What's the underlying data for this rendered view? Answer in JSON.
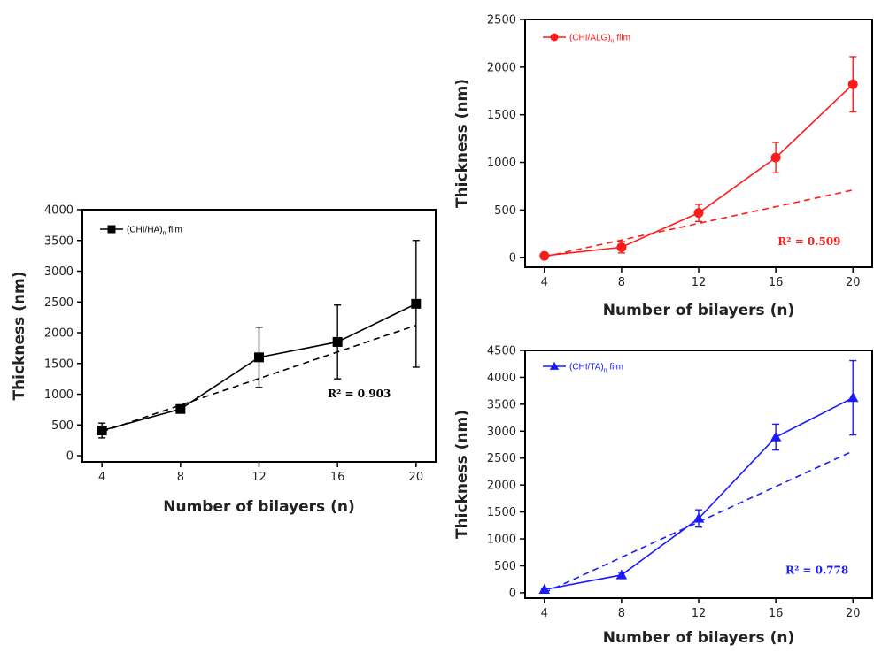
{
  "chart_data": [
    {
      "type": "line",
      "xlabel": "Number of bilayers (n)",
      "ylabel": "Thickness (nm)",
      "xlim": [
        3,
        21
      ],
      "ylim": [
        -100,
        4000
      ],
      "xticks": [
        4,
        8,
        12,
        16,
        20
      ],
      "yticks": [
        0,
        500,
        1000,
        1500,
        2000,
        2500,
        3000,
        3500,
        4000
      ],
      "color": "#000000",
      "marker": "square",
      "series": [
        {
          "name_prefix": "(CHI/HA)",
          "name_subscript": "n",
          "name_suffix": " film",
          "x": [
            4,
            8,
            12,
            16,
            20
          ],
          "y": [
            410,
            760,
            1600,
            1850,
            2470
          ],
          "error": [
            120,
            40,
            490,
            600,
            1030
          ]
        }
      ],
      "fit": {
        "type": "linear",
        "x": [
          4,
          20
        ],
        "y": [
          390,
          2120
        ]
      },
      "annotation": "R² = 0.903",
      "annotation_pos": [
        15.5,
        950
      ],
      "legend": "top-left"
    },
    {
      "type": "line",
      "xlabel": "Number of bilayers (n)",
      "ylabel": "Thickness (nm)",
      "xlim": [
        3,
        21
      ],
      "ylim": [
        -100,
        2500
      ],
      "xticks": [
        4,
        8,
        12,
        16,
        20
      ],
      "yticks": [
        0,
        500,
        1000,
        1500,
        2000,
        2500
      ],
      "color": "#ff1a1a",
      "marker": "circle",
      "series": [
        {
          "name_prefix": "(CHI/ALG)",
          "name_subscript": "n",
          "name_suffix": " film",
          "x": [
            4,
            8,
            12,
            16,
            20
          ],
          "y": [
            20,
            110,
            470,
            1050,
            1820
          ],
          "error": [
            10,
            60,
            90,
            160,
            290
          ]
        }
      ],
      "fit": {
        "type": "linear",
        "x": [
          4,
          20
        ],
        "y": [
          10,
          710
        ]
      },
      "annotation": "R² = 0.509",
      "annotation_pos": [
        16.1,
        130
      ],
      "legend": "top-left"
    },
    {
      "type": "line",
      "xlabel": "Number of bilayers (n)",
      "ylabel": "Thickness (nm)",
      "xlim": [
        3,
        21
      ],
      "ylim": [
        -100,
        4500
      ],
      "xticks": [
        4,
        8,
        12,
        16,
        20
      ],
      "yticks": [
        0,
        500,
        1000,
        1500,
        2000,
        2500,
        3000,
        3500,
        4000,
        4500
      ],
      "color": "#1a1aff",
      "marker": "triangle",
      "series": [
        {
          "name_prefix": "(CHI/TA)",
          "name_subscript": "n",
          "name_suffix": " film",
          "x": [
            4,
            8,
            12,
            16,
            20
          ],
          "y": [
            60,
            330,
            1380,
            2890,
            3620
          ],
          "error": [
            20,
            50,
            160,
            240,
            690
          ]
        }
      ],
      "fit": {
        "type": "linear",
        "x": [
          4,
          20
        ],
        "y": [
          0,
          2630
        ]
      },
      "annotation": "R² = 0.778",
      "annotation_pos": [
        16.5,
        350
      ],
      "legend": "top-left"
    }
  ]
}
